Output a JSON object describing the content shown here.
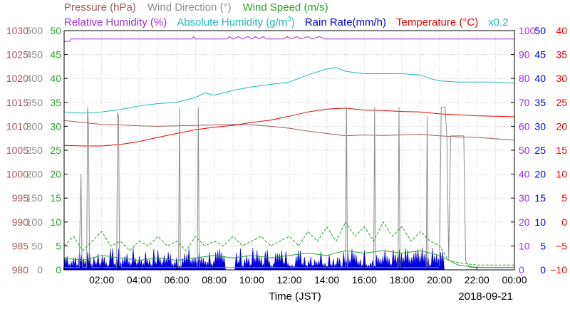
{
  "chart_data": {
    "type": "line",
    "legend": {
      "row1": [
        {
          "key": "pressure",
          "text": "Pressure (hPa)",
          "color": "#a05a5a"
        },
        {
          "key": "wind_dir",
          "text": "Wind Direction (°)",
          "color": "#8c8c8c"
        },
        {
          "key": "wind_speed",
          "text": "Wind Speed (m/s)",
          "color": "#2aa02a"
        }
      ],
      "row2": [
        {
          "key": "rel_hum",
          "text": "Relative Humidity (%)",
          "color": "#9b30d8"
        },
        {
          "key": "abs_hum",
          "text": "Absolute Humidity (g/m",
          "sup": "3",
          "close": ")",
          "color": "#22b8b8"
        },
        {
          "key": "rain",
          "text": "Rain Rate(mm/h)",
          "color": "#0000dd"
        },
        {
          "key": "temp",
          "text": "Temperature (°C)",
          "color": "#ee0000"
        },
        {
          "key": "scale",
          "text": "x0.2",
          "color": "#22b8b8"
        }
      ]
    },
    "axes": {
      "pressure": {
        "ticks": [
          "1030",
          "1025",
          "1020",
          "1015",
          "1010",
          "1005",
          "1000",
          "995",
          "990",
          "985",
          "980"
        ],
        "color": "#a05a5a",
        "range": [
          980,
          1030
        ]
      },
      "wind_dir": {
        "ticks": [
          "500",
          "450",
          "400",
          "350",
          "300",
          "250",
          "200",
          "150",
          "100",
          "50",
          "0"
        ],
        "color": "#8c8c8c",
        "range": [
          0,
          500
        ]
      },
      "wind_speed": {
        "ticks": [
          "50",
          "45",
          "40",
          "35",
          "30",
          "25",
          "20",
          "15",
          "10",
          "5",
          "0"
        ],
        "color": "#2aa02a",
        "range": [
          0,
          50
        ]
      },
      "rel_hum": {
        "ticks": [
          "100",
          "90",
          "80",
          "70",
          "60",
          "50",
          "40",
          "30",
          "20",
          "10",
          "0"
        ],
        "color": "#9b30d8",
        "range": [
          0,
          100
        ]
      },
      "rain": {
        "ticks": [
          "50",
          "45",
          "40",
          "35",
          "30",
          "25",
          "20",
          "15",
          "10",
          "5",
          "0"
        ],
        "color": "#0000dd",
        "range": [
          0,
          50
        ]
      },
      "temp": {
        "ticks": [
          "40",
          "35",
          "30",
          "25",
          "20",
          "15",
          "10",
          "5",
          "0",
          "−5",
          "−10"
        ],
        "color": "#ee0000",
        "range": [
          -10,
          40
        ]
      }
    },
    "x_ticks": [
      "02:00",
      "04:00",
      "06:00",
      "08:00",
      "10:00",
      "12:00",
      "14:00",
      "16:00",
      "18:00",
      "20:00",
      "22:00",
      "00:00"
    ],
    "x_range_hours": [
      0,
      24
    ],
    "xlabel": "Time (JST)",
    "date": "2018-09-21",
    "grid": true,
    "series": [
      {
        "key": "rel_hum",
        "points": [
          [
            0,
            95.5
          ],
          [
            0.3,
            95.5
          ],
          [
            0.35,
            96.5
          ],
          [
            6.8,
            96.5
          ],
          [
            6.9,
            97.5
          ],
          [
            7.0,
            96.5
          ],
          [
            8.7,
            96.5
          ],
          [
            8.8,
            97.5
          ],
          [
            9.0,
            96.5
          ],
          [
            9.3,
            97.5
          ],
          [
            9.5,
            96.5
          ],
          [
            9.8,
            97.5
          ],
          [
            10.0,
            96.5
          ],
          [
            10.2,
            97.5
          ],
          [
            10.4,
            96.5
          ],
          [
            10.6,
            97.5
          ],
          [
            10.8,
            96.5
          ],
          [
            11.7,
            96.5
          ],
          [
            11.9,
            97.5
          ],
          [
            12.1,
            96.5
          ],
          [
            12.4,
            97.5
          ],
          [
            12.6,
            96.5
          ],
          [
            13.0,
            97.5
          ],
          [
            13.2,
            96.5
          ],
          [
            13.6,
            97.5
          ],
          [
            13.9,
            96.5
          ],
          [
            24,
            96.5
          ]
        ]
      },
      {
        "key": "abs_hum",
        "points": [
          [
            0,
            66
          ],
          [
            1,
            65.5
          ],
          [
            2,
            66
          ],
          [
            3,
            67
          ],
          [
            4,
            68.5
          ],
          [
            5,
            69.5
          ],
          [
            6,
            70
          ],
          [
            7,
            72
          ],
          [
            7.5,
            74
          ],
          [
            8,
            73
          ],
          [
            9,
            75
          ],
          [
            10,
            76.5
          ],
          [
            11,
            77.5
          ],
          [
            12,
            78.5
          ],
          [
            12.5,
            80
          ],
          [
            13,
            81.5
          ],
          [
            14,
            84
          ],
          [
            14.5,
            84.5
          ],
          [
            15,
            83
          ],
          [
            16,
            82
          ],
          [
            17,
            82
          ],
          [
            18,
            82
          ],
          [
            19,
            81.5
          ],
          [
            19.5,
            80
          ],
          [
            20,
            79
          ],
          [
            21,
            78.5
          ],
          [
            22,
            78.5
          ],
          [
            23,
            78.5
          ],
          [
            24,
            78
          ]
        ]
      },
      {
        "key": "pressure",
        "points": [
          [
            0,
            1011.2
          ],
          [
            1,
            1010.8
          ],
          [
            2,
            1010.4
          ],
          [
            3,
            1010.3
          ],
          [
            4,
            1010.1
          ],
          [
            5,
            1010
          ],
          [
            6,
            1010.1
          ],
          [
            7,
            1010.2
          ],
          [
            8,
            1010.3
          ],
          [
            9,
            1010.4
          ],
          [
            10,
            1010.3
          ],
          [
            11,
            1010
          ],
          [
            12,
            1009.6
          ],
          [
            13,
            1009
          ],
          [
            14,
            1008.5
          ],
          [
            15,
            1008
          ],
          [
            16,
            1008.2
          ],
          [
            17,
            1008.1
          ],
          [
            18,
            1008.2
          ],
          [
            19,
            1008.3
          ],
          [
            20,
            1008
          ],
          [
            21,
            1007.8
          ],
          [
            22,
            1007.7
          ],
          [
            23,
            1007.4
          ],
          [
            24,
            1007.1
          ]
        ]
      },
      {
        "key": "temp",
        "points": [
          [
            0,
            16
          ],
          [
            1,
            15.9
          ],
          [
            2,
            15.9
          ],
          [
            3,
            16.2
          ],
          [
            4,
            16.8
          ],
          [
            5,
            17.7
          ],
          [
            6,
            18.5
          ],
          [
            7,
            19.3
          ],
          [
            8,
            19.8
          ],
          [
            9,
            20.2
          ],
          [
            10,
            20.8
          ],
          [
            11,
            21.3
          ],
          [
            12,
            22.1
          ],
          [
            13,
            23
          ],
          [
            14,
            23.6
          ],
          [
            15,
            23.8
          ],
          [
            16,
            23.4
          ],
          [
            17,
            23.3
          ],
          [
            18,
            23.1
          ],
          [
            19,
            23
          ],
          [
            20,
            22.6
          ],
          [
            21,
            22.4
          ],
          [
            22,
            22.2
          ],
          [
            23,
            22.1
          ],
          [
            24,
            22
          ]
        ]
      },
      {
        "key": "wind_dir",
        "points": [
          [
            0,
            5
          ],
          [
            0.8,
            5
          ],
          [
            0.9,
            200
          ],
          [
            0.95,
            20
          ],
          [
            1.0,
            5
          ],
          [
            1.2,
            5
          ],
          [
            1.25,
            340
          ],
          [
            1.3,
            300
          ],
          [
            1.35,
            20
          ],
          [
            1.5,
            5
          ],
          [
            2.8,
            5
          ],
          [
            2.85,
            330
          ],
          [
            2.9,
            320
          ],
          [
            2.95,
            10
          ],
          [
            3.1,
            5
          ],
          [
            6.1,
            5
          ],
          [
            6.15,
            340
          ],
          [
            6.2,
            5
          ],
          [
            7.1,
            5
          ],
          [
            7.15,
            340
          ],
          [
            7.2,
            5
          ],
          [
            15.0,
            5
          ],
          [
            15.05,
            340
          ],
          [
            15.1,
            5
          ],
          [
            16.5,
            5
          ],
          [
            16.55,
            340
          ],
          [
            16.6,
            5
          ],
          [
            17.8,
            5
          ],
          [
            17.85,
            340
          ],
          [
            17.9,
            5
          ],
          [
            19.3,
            5
          ],
          [
            19.35,
            320
          ],
          [
            19.4,
            5
          ],
          [
            20.0,
            5
          ],
          [
            20.1,
            340
          ],
          [
            20.3,
            340
          ],
          [
            20.4,
            280
          ],
          [
            20.5,
            20
          ],
          [
            20.6,
            280
          ],
          [
            21.3,
            280
          ],
          [
            21.4,
            20
          ],
          [
            21.6,
            5
          ],
          [
            24,
            5
          ]
        ]
      },
      {
        "key": "wind_speed",
        "points": [
          [
            0,
            2.5
          ],
          [
            1,
            2
          ],
          [
            2,
            3
          ],
          [
            3,
            2.5
          ],
          [
            4,
            2
          ],
          [
            5,
            2.5
          ],
          [
            6,
            2
          ],
          [
            7,
            2.5
          ],
          [
            8,
            3
          ],
          [
            9,
            2.5
          ],
          [
            10,
            3
          ],
          [
            11,
            2.5
          ],
          [
            12,
            3
          ],
          [
            13,
            3.5
          ],
          [
            14,
            3
          ],
          [
            15,
            4
          ],
          [
            16,
            3.5
          ],
          [
            17,
            4
          ],
          [
            18,
            3.5
          ],
          [
            19,
            4
          ],
          [
            20,
            3
          ],
          [
            21,
            1
          ],
          [
            22,
            0.5
          ],
          [
            23,
            0.5
          ],
          [
            24,
            0.5
          ]
        ]
      },
      {
        "key": "wind_gust",
        "points": [
          [
            0,
            5
          ],
          [
            0.5,
            7
          ],
          [
            1,
            4
          ],
          [
            1.5,
            6
          ],
          [
            2,
            8
          ],
          [
            2.5,
            5
          ],
          [
            3,
            6
          ],
          [
            3.5,
            4
          ],
          [
            4,
            6
          ],
          [
            4.5,
            5
          ],
          [
            5,
            7
          ],
          [
            5.5,
            5
          ],
          [
            6,
            6
          ],
          [
            6.5,
            4
          ],
          [
            7,
            7
          ],
          [
            7.5,
            5
          ],
          [
            8,
            6
          ],
          [
            8.5,
            5
          ],
          [
            9,
            7
          ],
          [
            9.5,
            5
          ],
          [
            10,
            6
          ],
          [
            10.5,
            7
          ],
          [
            11,
            5
          ],
          [
            11.5,
            6
          ],
          [
            12,
            7
          ],
          [
            12.5,
            5
          ],
          [
            13,
            8
          ],
          [
            13.5,
            6
          ],
          [
            14,
            9
          ],
          [
            14.5,
            6
          ],
          [
            15,
            10
          ],
          [
            15.5,
            7
          ],
          [
            16,
            9
          ],
          [
            16.5,
            6
          ],
          [
            17,
            10
          ],
          [
            17.5,
            7
          ],
          [
            18,
            9
          ],
          [
            18.5,
            6
          ],
          [
            19,
            8
          ],
          [
            19.5,
            6
          ],
          [
            20,
            5
          ],
          [
            20.5,
            2
          ],
          [
            21,
            1.5
          ],
          [
            22,
            1
          ],
          [
            24,
            1
          ]
        ]
      }
    ]
  }
}
